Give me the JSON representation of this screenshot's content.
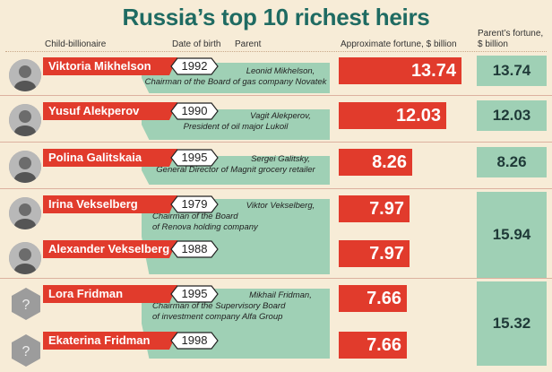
{
  "title": "Russia’s top 10 richest heirs",
  "headers": {
    "child": "Child-billionaire",
    "dob": "Date of birth",
    "parent": "Parent",
    "fortune": "Approximate fortune, $ billion",
    "parent_fortune_1": "Parent’s fortune,",
    "parent_fortune_2": "$ billion"
  },
  "chart_data": {
    "type": "bar",
    "title": "Russia’s top 10 richest heirs",
    "categories": [
      "Viktoria Mikhelson",
      "Yusuf Alekperov",
      "Polina Galitskaia",
      "Irina Vekselberg",
      "Alexander Vekselberg",
      "Lora Fridman",
      "Ekaterina Fridman"
    ],
    "series": [
      {
        "name": "Approximate fortune, $ billion",
        "values": [
          13.74,
          12.03,
          8.26,
          7.97,
          7.97,
          7.66,
          7.66
        ],
        "labels": [
          "13.74",
          "12.03",
          "8.26",
          "7.97",
          "7.97",
          "7.66",
          "7.66"
        ]
      }
    ],
    "birth_years": [
      "1992",
      "1990",
      "1995",
      "1979",
      "1988",
      "1995",
      "1998"
    ],
    "parents": [
      {
        "name": "Leonid Mikhelson,",
        "role": "Chairman of the Board of gas company Novatek",
        "fortune": "13.74"
      },
      {
        "name": "Vagit Alekperov,",
        "role": "President of oil major Lukoil",
        "fortune": "12.03"
      },
      {
        "name": "Sergei Galitsky,",
        "role": "General Director of Magnit grocery retailer",
        "fortune": "8.26"
      },
      {
        "name": "Viktor Vekselberg,",
        "role": "Chairman of the Board of Renova holding company",
        "role_lines": [
          "Chairman of the Board",
          "of Renova holding company"
        ],
        "fortune": "15.94"
      },
      {
        "name": "Mikhail Fridman,",
        "role": "Chairman of the Supervisory Board of investment company Alfa Group",
        "role_lines": [
          "Chairman of the Supervisory Board",
          "of investment company Alfa Group"
        ],
        "fortune": "15.32"
      }
    ],
    "colors": {
      "fortune_bar": "#e13b2c",
      "parent_band": "#9fd0b5",
      "title": "#1f6b62",
      "background": "#f7ecd7"
    },
    "unknown_photo_mark": "?"
  }
}
